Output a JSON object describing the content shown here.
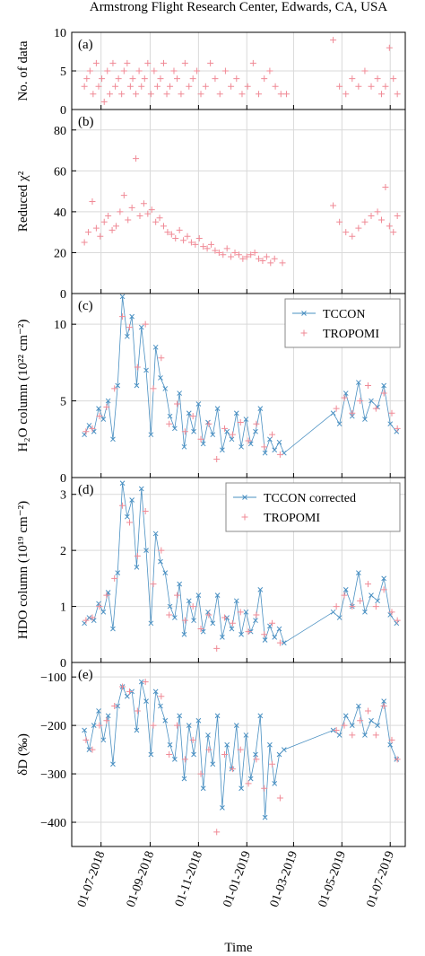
{
  "figure": {
    "title": "Armstrong Flight Research Center, Edwards, CA, USA",
    "xlabel": "Time",
    "xticks": [
      "01-07-2018",
      "01-09-2018",
      "01-11-2018",
      "01-01-2019",
      "01-03-2019",
      "01-05-2019",
      "01-07-2019"
    ],
    "colors": {
      "tccon": "#4a90c2",
      "tropomi": "#f08a96",
      "grid": "#d9d9d9"
    }
  },
  "chart_data": [
    {
      "type": "scatter",
      "panel_label": "(a)",
      "ylabel": "No. of data",
      "ylim": [
        0,
        10
      ],
      "yticks": [
        "0",
        "5",
        "10"
      ],
      "grid": true,
      "series": [
        {
          "x": [
            "2018-06-10",
            "2018-06-13",
            "2018-06-17",
            "2018-06-21",
            "2018-06-25",
            "2018-06-28",
            "2018-07-02",
            "2018-07-05",
            "2018-07-09",
            "2018-07-12",
            "2018-07-16",
            "2018-07-19",
            "2018-07-23",
            "2018-07-27",
            "2018-07-30",
            "2018-08-03",
            "2018-08-07",
            "2018-08-10",
            "2018-08-14",
            "2018-08-18",
            "2018-08-21",
            "2018-08-25",
            "2018-08-29",
            "2018-09-02",
            "2018-09-06",
            "2018-09-10",
            "2018-09-14",
            "2018-09-18",
            "2018-09-22",
            "2018-09-26",
            "2018-10-01",
            "2018-10-05",
            "2018-10-10",
            "2018-10-15",
            "2018-10-20",
            "2018-10-25",
            "2018-10-30",
            "2018-11-04",
            "2018-11-10",
            "2018-11-16",
            "2018-11-22",
            "2018-11-28",
            "2018-12-05",
            "2018-12-12",
            "2018-12-19",
            "2018-12-26",
            "2019-01-02",
            "2019-01-09",
            "2019-01-16",
            "2019-01-23",
            "2019-01-30",
            "2019-02-06",
            "2019-02-13",
            "2019-02-20",
            "2019-04-20",
            "2019-04-28",
            "2019-05-06",
            "2019-05-14",
            "2019-05-22",
            "2019-05-30",
            "2019-06-07",
            "2019-06-15",
            "2019-06-20",
            "2019-06-25",
            "2019-06-30",
            "2019-07-05",
            "2019-07-10"
          ],
          "y": [
            3,
            4,
            5,
            2,
            6,
            3,
            4,
            1,
            5,
            2,
            6,
            3,
            4,
            2,
            5,
            6,
            3,
            4,
            2,
            5,
            3,
            4,
            6,
            2,
            5,
            3,
            4,
            6,
            2,
            3,
            5,
            4,
            2,
            6,
            3,
            4,
            5,
            2,
            3,
            6,
            4,
            2,
            5,
            3,
            4,
            2,
            3,
            6,
            2,
            4,
            5,
            3,
            2,
            2,
            9,
            3,
            2,
            4,
            3,
            5,
            3,
            4,
            2,
            3,
            8,
            4,
            2
          ]
        }
      ]
    },
    {
      "type": "scatter",
      "panel_label": "(b)",
      "ylabel": "Reduced χ²",
      "ylim": [
        0,
        90
      ],
      "yticks": [
        "0",
        "20",
        "40",
        "60",
        "80"
      ],
      "grid": true,
      "series": [
        {
          "x": [
            "2018-06-10",
            "2018-06-15",
            "2018-06-20",
            "2018-06-25",
            "2018-06-30",
            "2018-07-05",
            "2018-07-10",
            "2018-07-15",
            "2018-07-20",
            "2018-07-25",
            "2018-07-30",
            "2018-08-04",
            "2018-08-09",
            "2018-08-14",
            "2018-08-19",
            "2018-08-24",
            "2018-08-29",
            "2018-09-03",
            "2018-09-08",
            "2018-09-13",
            "2018-09-18",
            "2018-09-23",
            "2018-09-28",
            "2018-10-03",
            "2018-10-08",
            "2018-10-13",
            "2018-10-18",
            "2018-10-23",
            "2018-10-28",
            "2018-11-02",
            "2018-11-07",
            "2018-11-12",
            "2018-11-17",
            "2018-11-22",
            "2018-11-27",
            "2018-12-02",
            "2018-12-07",
            "2018-12-12",
            "2018-12-17",
            "2018-12-22",
            "2018-12-27",
            "2019-01-01",
            "2019-01-06",
            "2019-01-11",
            "2019-01-16",
            "2019-01-21",
            "2019-01-26",
            "2019-01-31",
            "2019-02-05",
            "2019-02-15",
            "2019-04-20",
            "2019-04-28",
            "2019-05-06",
            "2019-05-14",
            "2019-05-22",
            "2019-05-30",
            "2019-06-07",
            "2019-06-15",
            "2019-06-20",
            "2019-06-25",
            "2019-06-30",
            "2019-07-05",
            "2019-07-10"
          ],
          "y": [
            25,
            30,
            45,
            32,
            28,
            35,
            38,
            31,
            33,
            40,
            48,
            36,
            42,
            66,
            38,
            44,
            39,
            41,
            35,
            37,
            33,
            30,
            29,
            27,
            31,
            26,
            28,
            25,
            24,
            27,
            23,
            22,
            24,
            21,
            20,
            19,
            22,
            18,
            20,
            19,
            17,
            18,
            19,
            20,
            17,
            16,
            18,
            15,
            17,
            15,
            43,
            35,
            30,
            28,
            32,
            35,
            38,
            40,
            36,
            52,
            33,
            30,
            38
          ]
        }
      ]
    },
    {
      "type": "line",
      "panel_label": "(c)",
      "ylabel": "H₂O column (10²² cm⁻²)",
      "ylim": [
        0,
        12
      ],
      "yticks": [
        "0",
        "5",
        "10"
      ],
      "grid": true,
      "legend": [
        "TCCON",
        "TROPOMI"
      ],
      "series": [
        {
          "name": "TCCON",
          "x": [
            "2018-06-10",
            "2018-06-16",
            "2018-06-22",
            "2018-06-28",
            "2018-07-04",
            "2018-07-10",
            "2018-07-16",
            "2018-07-22",
            "2018-07-28",
            "2018-08-03",
            "2018-08-09",
            "2018-08-15",
            "2018-08-21",
            "2018-08-27",
            "2018-09-02",
            "2018-09-08",
            "2018-09-14",
            "2018-09-20",
            "2018-09-26",
            "2018-10-02",
            "2018-10-08",
            "2018-10-14",
            "2018-10-20",
            "2018-10-26",
            "2018-11-01",
            "2018-11-07",
            "2018-11-13",
            "2018-11-19",
            "2018-11-25",
            "2018-12-01",
            "2018-12-07",
            "2018-12-13",
            "2018-12-19",
            "2018-12-25",
            "2018-12-31",
            "2019-01-06",
            "2019-01-12",
            "2019-01-18",
            "2019-01-24",
            "2019-01-30",
            "2019-02-05",
            "2019-02-11",
            "2019-02-17",
            "2019-04-20",
            "2019-04-28",
            "2019-05-06",
            "2019-05-14",
            "2019-05-22",
            "2019-05-30",
            "2019-06-07",
            "2019-06-15",
            "2019-06-23",
            "2019-07-01",
            "2019-07-09"
          ],
          "y": [
            2.8,
            3.4,
            3.0,
            4.5,
            3.8,
            5.0,
            2.5,
            6.0,
            11.8,
            9.2,
            10.5,
            6.0,
            9.8,
            7.0,
            2.8,
            8.5,
            6.5,
            5.8,
            4.0,
            3.2,
            5.5,
            2.0,
            4.2,
            3.0,
            4.8,
            2.2,
            3.6,
            2.8,
            4.5,
            1.8,
            3.0,
            2.5,
            4.2,
            2.0,
            3.8,
            2.2,
            3.0,
            4.5,
            1.6,
            2.5,
            1.8,
            2.3,
            1.6,
            4.2,
            3.5,
            5.5,
            4.0,
            6.2,
            3.8,
            5.0,
            4.6,
            6.0,
            3.5,
            3.0
          ]
        },
        {
          "name": "TROPOMI",
          "x": [
            "2018-06-12",
            "2018-06-20",
            "2018-06-29",
            "2018-07-08",
            "2018-07-18",
            "2018-07-28",
            "2018-08-06",
            "2018-08-16",
            "2018-08-26",
            "2018-09-05",
            "2018-09-15",
            "2018-09-25",
            "2018-10-05",
            "2018-10-15",
            "2018-10-25",
            "2018-11-04",
            "2018-11-14",
            "2018-11-24",
            "2018-12-04",
            "2018-12-14",
            "2018-12-24",
            "2019-01-03",
            "2019-01-13",
            "2019-01-23",
            "2019-02-02",
            "2019-02-12",
            "2019-04-24",
            "2019-05-04",
            "2019-05-14",
            "2019-05-24",
            "2019-06-03",
            "2019-06-13",
            "2019-06-23",
            "2019-07-03",
            "2019-07-10"
          ],
          "y": [
            3.0,
            3.2,
            4.0,
            4.6,
            5.8,
            10.5,
            9.8,
            7.2,
            10.0,
            5.8,
            7.8,
            3.5,
            4.8,
            3.0,
            4.0,
            2.5,
            3.5,
            1.2,
            3.2,
            2.8,
            3.6,
            2.4,
            3.5,
            2.0,
            2.8,
            1.5,
            4.5,
            5.2,
            4.2,
            5.0,
            6.0,
            4.5,
            5.5,
            4.2,
            3.2
          ]
        }
      ]
    },
    {
      "type": "line",
      "panel_label": "(d)",
      "ylabel": "HDO column (10¹⁹ cm⁻²)",
      "ylim": [
        0,
        3.3
      ],
      "yticks": [
        "0",
        "1",
        "2",
        "3"
      ],
      "grid": true,
      "legend": [
        "TCCON corrected",
        "TROPOMI"
      ],
      "series": [
        {
          "name": "TCCON corrected",
          "x": [
            "2018-06-10",
            "2018-06-16",
            "2018-06-22",
            "2018-06-28",
            "2018-07-04",
            "2018-07-10",
            "2018-07-16",
            "2018-07-22",
            "2018-07-28",
            "2018-08-03",
            "2018-08-09",
            "2018-08-15",
            "2018-08-21",
            "2018-08-27",
            "2018-09-02",
            "2018-09-08",
            "2018-09-14",
            "2018-09-20",
            "2018-09-26",
            "2018-10-02",
            "2018-10-08",
            "2018-10-14",
            "2018-10-20",
            "2018-10-26",
            "2018-11-01",
            "2018-11-07",
            "2018-11-13",
            "2018-11-19",
            "2018-11-25",
            "2018-12-01",
            "2018-12-07",
            "2018-12-13",
            "2018-12-19",
            "2018-12-25",
            "2018-12-31",
            "2019-01-06",
            "2019-01-12",
            "2019-01-18",
            "2019-01-24",
            "2019-01-30",
            "2019-02-05",
            "2019-02-11",
            "2019-02-17",
            "2019-04-20",
            "2019-04-28",
            "2019-05-06",
            "2019-05-14",
            "2019-05-22",
            "2019-05-30",
            "2019-06-07",
            "2019-06-15",
            "2019-06-23",
            "2019-07-01",
            "2019-07-09"
          ],
          "y": [
            0.7,
            0.8,
            0.75,
            1.05,
            0.9,
            1.25,
            0.6,
            1.6,
            3.2,
            2.6,
            2.9,
            1.7,
            3.1,
            2.0,
            0.7,
            2.3,
            1.8,
            1.6,
            1.0,
            0.8,
            1.4,
            0.5,
            1.1,
            0.75,
            1.2,
            0.55,
            0.9,
            0.7,
            1.2,
            0.45,
            0.8,
            0.6,
            1.1,
            0.5,
            0.9,
            0.55,
            0.75,
            1.3,
            0.4,
            0.65,
            0.45,
            0.6,
            0.35,
            0.9,
            0.8,
            1.3,
            1.0,
            1.6,
            0.9,
            1.2,
            1.1,
            1.5,
            0.85,
            0.7
          ]
        },
        {
          "name": "TROPOMI",
          "x": [
            "2018-06-12",
            "2018-06-20",
            "2018-06-29",
            "2018-07-08",
            "2018-07-18",
            "2018-07-28",
            "2018-08-06",
            "2018-08-16",
            "2018-08-26",
            "2018-09-05",
            "2018-09-15",
            "2018-09-25",
            "2018-10-05",
            "2018-10-15",
            "2018-10-25",
            "2018-11-04",
            "2018-11-14",
            "2018-11-24",
            "2018-12-04",
            "2018-12-14",
            "2018-12-24",
            "2019-01-03",
            "2019-01-13",
            "2019-01-23",
            "2019-02-02",
            "2019-02-12",
            "2019-04-24",
            "2019-05-04",
            "2019-05-14",
            "2019-05-24",
            "2019-06-03",
            "2019-06-13",
            "2019-06-23",
            "2019-07-03",
            "2019-07-10"
          ],
          "y": [
            0.75,
            0.8,
            1.0,
            1.2,
            1.5,
            2.8,
            2.5,
            1.9,
            2.7,
            1.4,
            2.0,
            0.85,
            1.2,
            0.75,
            1.0,
            0.6,
            0.85,
            0.25,
            0.8,
            0.7,
            0.9,
            0.55,
            0.85,
            0.5,
            0.7,
            0.35,
            1.0,
            1.2,
            1.0,
            1.1,
            1.4,
            1.0,
            1.3,
            0.9,
            0.75
          ]
        }
      ]
    },
    {
      "type": "line",
      "panel_label": "(e)",
      "ylabel": "δD (‰)",
      "ylim": [
        -450,
        -70
      ],
      "yticks": [
        "−100",
        "−200",
        "−300",
        "−400"
      ],
      "grid": true,
      "series": [
        {
          "name": "TCCON",
          "x": [
            "2018-06-10",
            "2018-06-16",
            "2018-06-22",
            "2018-06-28",
            "2018-07-04",
            "2018-07-10",
            "2018-07-16",
            "2018-07-22",
            "2018-07-28",
            "2018-08-03",
            "2018-08-09",
            "2018-08-15",
            "2018-08-21",
            "2018-08-27",
            "2018-09-02",
            "2018-09-08",
            "2018-09-14",
            "2018-09-20",
            "2018-09-26",
            "2018-10-02",
            "2018-10-08",
            "2018-10-14",
            "2018-10-20",
            "2018-10-26",
            "2018-11-01",
            "2018-11-07",
            "2018-11-13",
            "2018-11-19",
            "2018-11-25",
            "2018-12-01",
            "2018-12-07",
            "2018-12-13",
            "2018-12-19",
            "2018-12-25",
            "2018-12-31",
            "2019-01-06",
            "2019-01-12",
            "2019-01-18",
            "2019-01-24",
            "2019-01-30",
            "2019-02-05",
            "2019-02-11",
            "2019-02-17",
            "2019-04-20",
            "2019-04-28",
            "2019-05-06",
            "2019-05-14",
            "2019-05-22",
            "2019-05-30",
            "2019-06-07",
            "2019-06-15",
            "2019-06-23",
            "2019-07-01",
            "2019-07-09"
          ],
          "y": [
            -210,
            -250,
            -200,
            -170,
            -230,
            -180,
            -280,
            -160,
            -120,
            -140,
            -130,
            -210,
            -110,
            -150,
            -260,
            -130,
            -160,
            -190,
            -240,
            -270,
            -180,
            -310,
            -200,
            -260,
            -190,
            -330,
            -220,
            -280,
            -180,
            -370,
            -240,
            -290,
            -200,
            -330,
            -220,
            -310,
            -260,
            -180,
            -390,
            -240,
            -320,
            -260,
            -250,
            -210,
            -220,
            -180,
            -200,
            -160,
            -220,
            -190,
            -200,
            -150,
            -240,
            -270
          ]
        },
        {
          "name": "TROPOMI",
          "x": [
            "2018-06-12",
            "2018-06-20",
            "2018-06-29",
            "2018-07-08",
            "2018-07-18",
            "2018-07-28",
            "2018-08-06",
            "2018-08-16",
            "2018-08-26",
            "2018-09-05",
            "2018-09-15",
            "2018-09-25",
            "2018-10-05",
            "2018-10-15",
            "2018-10-25",
            "2018-11-04",
            "2018-11-14",
            "2018-11-24",
            "2018-12-04",
            "2018-12-14",
            "2018-12-24",
            "2019-01-03",
            "2019-01-13",
            "2019-01-23",
            "2019-02-02",
            "2019-02-12",
            "2019-04-24",
            "2019-05-04",
            "2019-05-14",
            "2019-05-24",
            "2019-06-03",
            "2019-06-13",
            "2019-06-23",
            "2019-07-03",
            "2019-07-10"
          ],
          "y": [
            -230,
            -250,
            -200,
            -190,
            -160,
            -120,
            -130,
            -170,
            -110,
            -200,
            -140,
            -260,
            -200,
            -270,
            -230,
            -300,
            -250,
            -420,
            -260,
            -290,
            -250,
            -320,
            -270,
            -330,
            -280,
            -350,
            -210,
            -200,
            -220,
            -190,
            -170,
            -220,
            -160,
            -230,
            -270
          ]
        }
      ]
    }
  ]
}
